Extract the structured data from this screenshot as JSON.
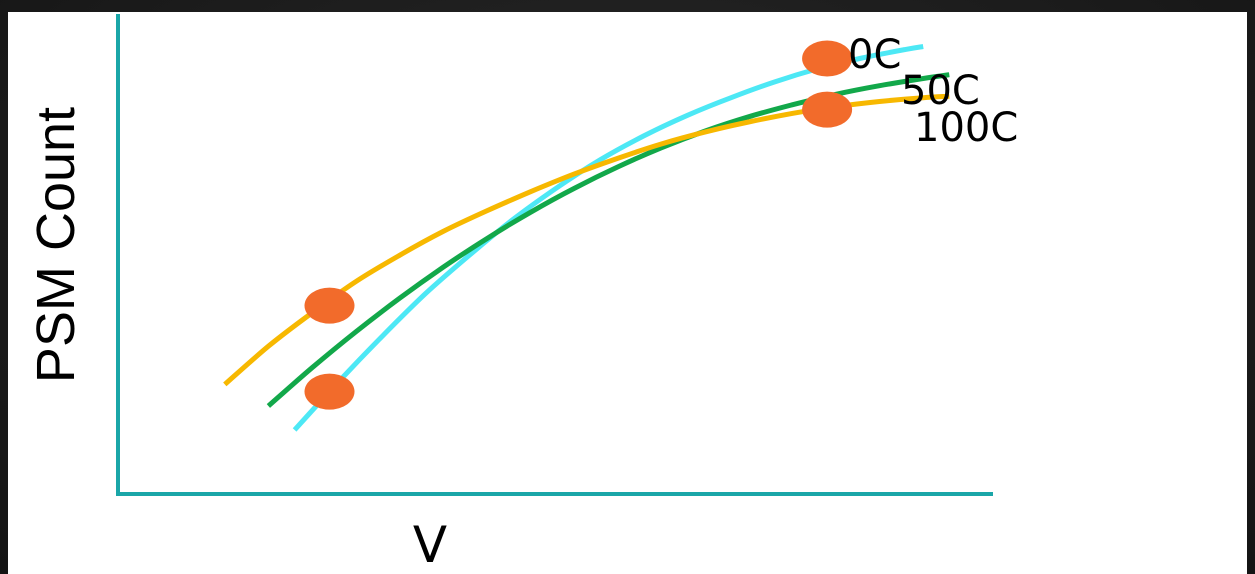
{
  "colors": {
    "background": "#ffffff",
    "frame": "#1e1e1e",
    "axis": "#1aa6a8",
    "marker": "#f26b2b"
  },
  "chart_data": {
    "type": "line",
    "xlabel": "V",
    "ylabel": "PSM Count",
    "grid": false,
    "ticks": false,
    "xlim": [
      0,
      100
    ],
    "ylim": [
      0,
      100
    ],
    "series": [
      {
        "name": "0C",
        "color": "#4de8f5",
        "label_text": "0C",
        "x": [
          20,
          25,
          30,
          35,
          40,
          45,
          50,
          55,
          60,
          65,
          70,
          75,
          80,
          85,
          90,
          92
        ],
        "y": [
          13,
          23,
          32.5,
          41.5,
          49.5,
          57,
          63.6,
          69.5,
          74.5,
          78.8,
          82.5,
          85.8,
          88.6,
          90.8,
          92.6,
          93.2
        ]
      },
      {
        "name": "50C",
        "color": "#12a84a",
        "label_text": "50C",
        "x": [
          17,
          22,
          27,
          32,
          37,
          42,
          47,
          52,
          57,
          62,
          67,
          72,
          77,
          82,
          87,
          92,
          95
        ],
        "y": [
          18,
          26,
          33.5,
          40.5,
          47,
          53,
          58.5,
          63.5,
          68,
          72,
          75.5,
          78.5,
          81,
          83.2,
          85,
          86.5,
          87.3
        ]
      },
      {
        "name": "100C",
        "color": "#f7b800",
        "label_text": "100C",
        "x": [
          12,
          17,
          22,
          27,
          32,
          37,
          42,
          47,
          52,
          57,
          62,
          67,
          72,
          77,
          82,
          87,
          92,
          95
        ],
        "y": [
          22.5,
          30.5,
          37.5,
          44,
          49.5,
          54.5,
          58.8,
          62.8,
          66.5,
          69.8,
          72.8,
          75.3,
          77.4,
          79.2,
          80.6,
          81.7,
          82.5,
          82.8
        ]
      }
    ],
    "highlight_points": [
      {
        "x": 24,
        "y": 39,
        "color": "#f26b2b"
      },
      {
        "x": 24,
        "y": 21,
        "color": "#f26b2b"
      },
      {
        "x": 81,
        "y": 90.7,
        "color": "#f26b2b"
      },
      {
        "x": 81,
        "y": 80,
        "color": "#f26b2b"
      }
    ]
  }
}
